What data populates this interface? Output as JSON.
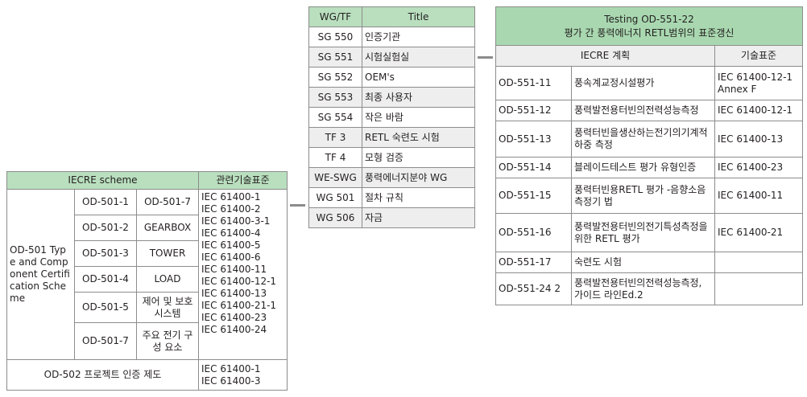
{
  "iecre_table": {
    "header_scheme": "IECRE scheme",
    "header_standard": "관련기술표준",
    "od501_label": "OD-501 Type and Component Certification Scheme",
    "rows": [
      {
        "code": "OD-501-1",
        "name": "OD-501-7"
      },
      {
        "code": "OD-501-2",
        "name": "GEARBOX"
      },
      {
        "code": "OD-501-3",
        "name": "TOWER"
      },
      {
        "code": "OD-501-4",
        "name": "LOAD"
      },
      {
        "code": "OD-501-5",
        "name": "제어 및 보호시스템"
      },
      {
        "code": "OD-501-7",
        "name": "주요 전기 구성 요소"
      }
    ],
    "od501_standards": [
      "IEC 61400-1",
      "IEC 61400-2",
      "IEC 61400-3-1",
      "IEC 61400-4",
      "IEC 61400-5",
      "IEC 61400-6",
      "IEC 61400-11",
      "IEC 61400-12-1",
      "IEC 61400-13",
      "IEC 61400-21-1",
      "IEC 61400-23",
      "IEC 61400-24"
    ],
    "od502_label": "OD-502 프로젝트 인증 제도",
    "od502_standards": [
      "IEC 61400-1",
      "IEC 61400-3"
    ]
  },
  "wg_table": {
    "header_wg": "WG/TF",
    "header_title": "Title",
    "rows": [
      {
        "wg": "SG 550",
        "title": "인증기관"
      },
      {
        "wg": "SG 551",
        "title": "시험실험실"
      },
      {
        "wg": "SG 552",
        "title": "OEM's"
      },
      {
        "wg": "SG 553",
        "title": "최종 사용자"
      },
      {
        "wg": "SG 554",
        "title": "작은 바람"
      },
      {
        "wg": "TF 3",
        "title": "RETL 숙련도 시험"
      },
      {
        "wg": "TF 4",
        "title": "모형 검증"
      },
      {
        "wg": "WE-SWG",
        "title": "풍력에너지분야 WG"
      },
      {
        "wg": "WG 501",
        "title": "절차 규칙"
      },
      {
        "wg": "WG 506",
        "title": "자금"
      }
    ]
  },
  "testing_table": {
    "title_line1": "Testing OD-551-22",
    "title_line2": "평가 간 풍력에너지 RETL범위의 표준갱신",
    "header_plan": "IECRE 계획",
    "header_standard": "기술표준",
    "rows": [
      {
        "code": "OD-551-11",
        "name": "풍속계교정시설평가",
        "std": "IEC 61400-12-1 Annex F"
      },
      {
        "code": "OD-551-12",
        "name": "풍력발전용터빈의전력성능측정",
        "std": "IEC 61400-12-1"
      },
      {
        "code": "OD-551-13",
        "name": "풍력터빈을생산하는전기의기계적하중 측정",
        "std": "IEC 61400-13"
      },
      {
        "code": "OD-551-14",
        "name": "블레이드테스트 평가 유형인증",
        "std": "IEC 61400-23"
      },
      {
        "code": "OD-551-15",
        "name": "풍력터빈용RETL 평가 -음향소음측정기 법",
        "std": "IEC 61400-11"
      },
      {
        "code": "OD-551-16",
        "name": "풍력발전용터빈의전기특성측정을위한 RETL 평가",
        "std": "IEC 61400-21"
      },
      {
        "code": "OD-551-17",
        "name": "숙련도 시험",
        "std": ""
      },
      {
        "code": "OD-551-24 2",
        "name": "풍력발전용터빈의전력성능측정, 가이드 라인Ed.2",
        "std": ""
      }
    ]
  },
  "colors": {
    "header_green": "#b9dfbe",
    "alt_row": "#eeeeee",
    "border": "#8c8c8c"
  }
}
